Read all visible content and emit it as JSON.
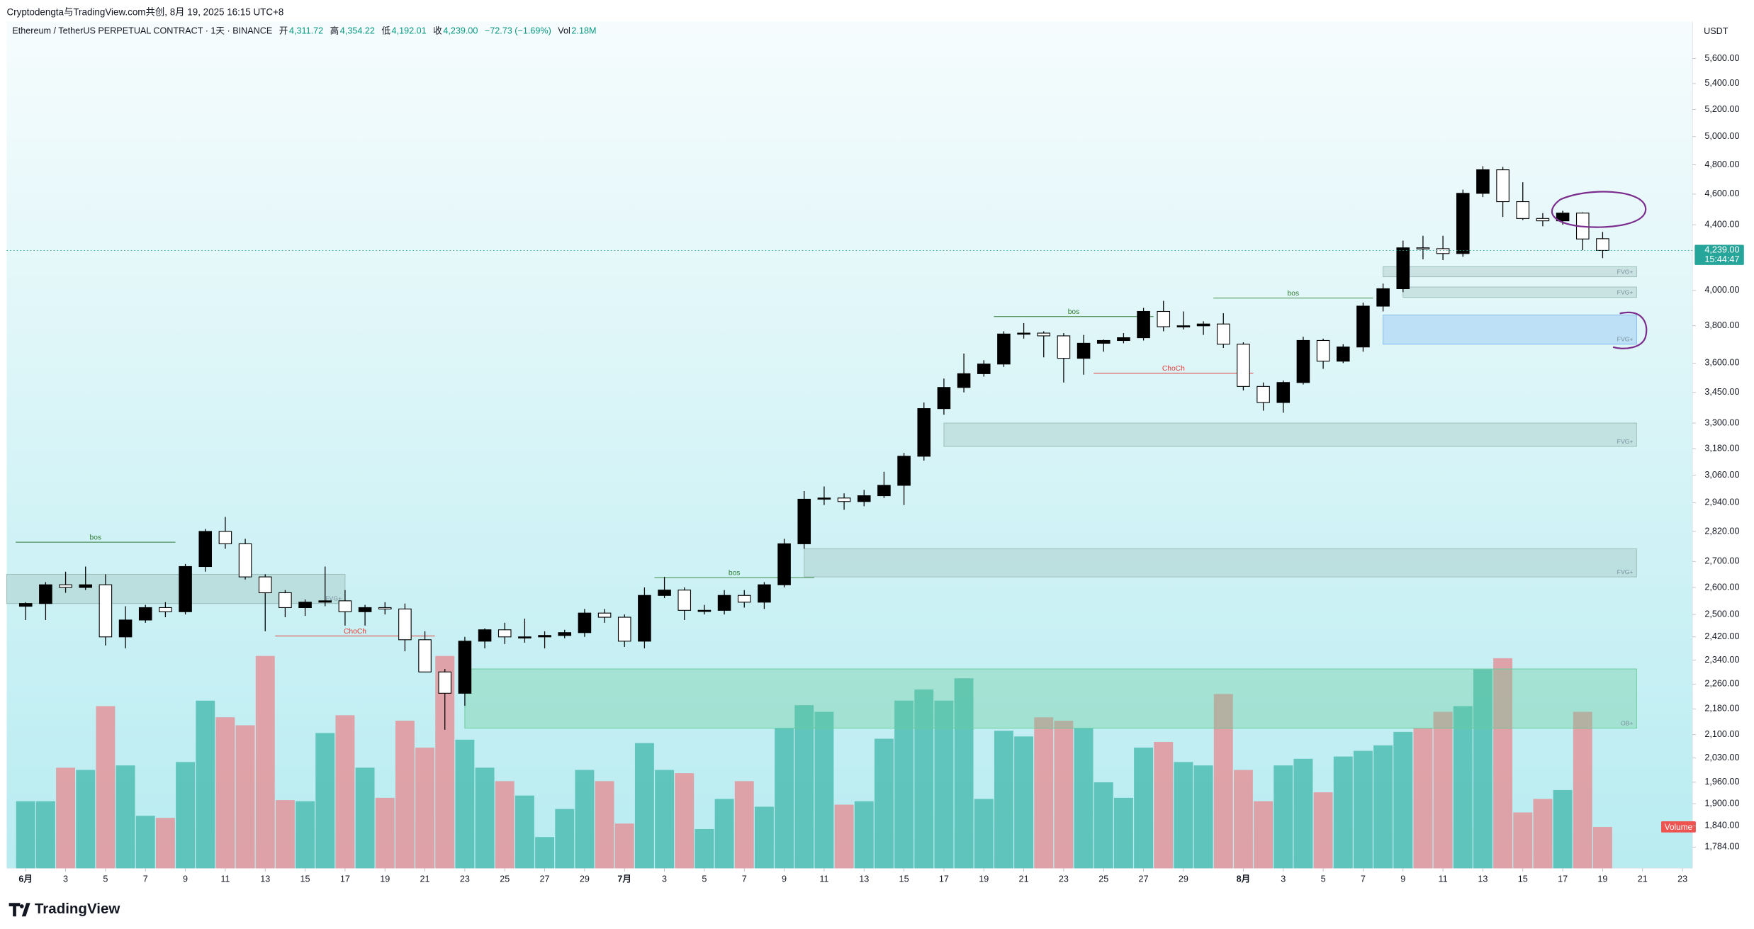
{
  "attribution": "Cryptodengta与TradingView.com共创, 8月 19, 2025 16:15 UTC+8",
  "chart_data": {
    "type": "candlestick",
    "title": "Ethereum / TetherUS PERPETUAL CONTRACT · 1天 · BINANCE",
    "ohlc_header": [
      {
        "label": "开",
        "value": "4,311.72"
      },
      {
        "label": "高",
        "value": "4,354.22"
      },
      {
        "label": "低",
        "value": "4,192.01"
      },
      {
        "label": "收",
        "value": "4,239.00"
      }
    ],
    "change": "−72.73 (−1.69%)",
    "volume_header": {
      "label": "Vol",
      "value": "2.18M"
    },
    "currency": "USDT",
    "last_price": {
      "value": 4239,
      "label": "4,239.00",
      "countdown": "15:44:47"
    },
    "log_scale": true,
    "ylim": [
      1730,
      5908
    ],
    "yticks": [
      {
        "value": 5600,
        "label": "5,600.00"
      },
      {
        "value": 5400,
        "label": "5,400.00"
      },
      {
        "value": 5200,
        "label": "5,200.00"
      },
      {
        "value": 5000,
        "label": "5,000.00"
      },
      {
        "value": 4800,
        "label": "4,800.00"
      },
      {
        "value": 4600,
        "label": "4,600.00"
      },
      {
        "value": 4400,
        "label": "4,400.00"
      },
      {
        "value": 4000,
        "label": "4,000.00"
      },
      {
        "value": 3800,
        "label": "3,800.00"
      },
      {
        "value": 3600,
        "label": "3,600.00"
      },
      {
        "value": 3450,
        "label": "3,450.00"
      },
      {
        "value": 3300,
        "label": "3,300.00"
      },
      {
        "value": 3180,
        "label": "3,180.00"
      },
      {
        "value": 3060,
        "label": "3,060.00"
      },
      {
        "value": 2940,
        "label": "2,940.00"
      },
      {
        "value": 2820,
        "label": "2,820.00"
      },
      {
        "value": 2700,
        "label": "2,700.00"
      },
      {
        "value": 2600,
        "label": "2,600.00"
      },
      {
        "value": 2500,
        "label": "2,500.00"
      },
      {
        "value": 2420,
        "label": "2,420.00"
      },
      {
        "value": 2340,
        "label": "2,340.00"
      },
      {
        "value": 2260,
        "label": "2,260.00"
      },
      {
        "value": 2180,
        "label": "2,180.00"
      },
      {
        "value": 2100,
        "label": "2,100.00"
      },
      {
        "value": 2030,
        "label": "2,030.00"
      },
      {
        "value": 1960,
        "label": "1,960.00"
      },
      {
        "value": 1900,
        "label": "1,900.00"
      },
      {
        "value": 1840,
        "label": "1,840.00"
      },
      {
        "value": 1784,
        "label": "1,784.00"
      }
    ],
    "xlim": [
      -0.95,
      83.5
    ],
    "xticks": [
      {
        "value": 0,
        "label": "6月"
      },
      {
        "value": 2,
        "label": "3"
      },
      {
        "value": 4,
        "label": "5"
      },
      {
        "value": 6,
        "label": "7"
      },
      {
        "value": 8,
        "label": "9"
      },
      {
        "value": 10,
        "label": "11"
      },
      {
        "value": 12,
        "label": "13"
      },
      {
        "value": 14,
        "label": "15"
      },
      {
        "value": 16,
        "label": "17"
      },
      {
        "value": 18,
        "label": "19"
      },
      {
        "value": 20,
        "label": "21"
      },
      {
        "value": 22,
        "label": "23"
      },
      {
        "value": 24,
        "label": "25"
      },
      {
        "value": 26,
        "label": "27"
      },
      {
        "value": 28,
        "label": "29"
      },
      {
        "value": 30,
        "label": "7月"
      },
      {
        "value": 32,
        "label": "3"
      },
      {
        "value": 34,
        "label": "5"
      },
      {
        "value": 36,
        "label": "7"
      },
      {
        "value": 38,
        "label": "9"
      },
      {
        "value": 40,
        "label": "11"
      },
      {
        "value": 42,
        "label": "13"
      },
      {
        "value": 44,
        "label": "15"
      },
      {
        "value": 46,
        "label": "17"
      },
      {
        "value": 48,
        "label": "19"
      },
      {
        "value": 50,
        "label": "21"
      },
      {
        "value": 52,
        "label": "23"
      },
      {
        "value": 54,
        "label": "25"
      },
      {
        "value": 56,
        "label": "27"
      },
      {
        "value": 58,
        "label": "29"
      },
      {
        "value": 61,
        "label": "8月"
      },
      {
        "value": 63,
        "label": "3"
      },
      {
        "value": 65,
        "label": "5"
      },
      {
        "value": 67,
        "label": "7"
      },
      {
        "value": 69,
        "label": "9"
      },
      {
        "value": 71,
        "label": "11"
      },
      {
        "value": 73,
        "label": "13"
      },
      {
        "value": 75,
        "label": "15"
      },
      {
        "value": 77,
        "label": "17"
      },
      {
        "value": 79,
        "label": "19"
      },
      {
        "value": 81,
        "label": "21"
      },
      {
        "value": 83,
        "label": "23"
      }
    ],
    "candles": {
      "open": [
        2530,
        2540,
        2610,
        2600,
        2610,
        2420,
        2480,
        2525,
        2510,
        2680,
        2820,
        2770,
        2640,
        2580,
        2525,
        2545,
        2550,
        2510,
        2525,
        2520,
        2410,
        2300,
        2230,
        2405,
        2445,
        2420,
        2420,
        2425,
        2435,
        2505,
        2490,
        2405,
        2570,
        2590,
        2515,
        2515,
        2570,
        2545,
        2610,
        2770,
        2955,
        2960,
        2945,
        2970,
        3015,
        3145,
        3370,
        3475,
        3545,
        3595,
        3755,
        3760,
        3745,
        3625,
        3705,
        3720,
        3735,
        3880,
        3795,
        3800,
        3810,
        3700,
        3480,
        3400,
        3500,
        3720,
        3610,
        3685,
        3910,
        4010,
        4255,
        4250,
        4220,
        4605,
        4765,
        4550,
        4440,
        4425,
        4475,
        4311.72
      ],
      "high": [
        2545,
        2620,
        2660,
        2680,
        2650,
        2530,
        2535,
        2545,
        2690,
        2830,
        2880,
        2790,
        2650,
        2590,
        2555,
        2680,
        2590,
        2535,
        2545,
        2540,
        2440,
        2310,
        2420,
        2450,
        2470,
        2485,
        2440,
        2445,
        2520,
        2520,
        2500,
        2600,
        2640,
        2600,
        2535,
        2590,
        2590,
        2620,
        2790,
        2990,
        3010,
        2980,
        2995,
        3075,
        3160,
        3400,
        3520,
        3650,
        3615,
        3770,
        3815,
        3770,
        3760,
        3750,
        3725,
        3760,
        3900,
        3940,
        3880,
        3825,
        3870,
        3710,
        3500,
        3510,
        3740,
        3730,
        3700,
        3930,
        4040,
        4300,
        4330,
        4330,
        4630,
        4790,
        4785,
        4680,
        4475,
        4490,
        4480,
        4354.22
      ],
      "low": [
        2480,
        2480,
        2580,
        2590,
        2390,
        2380,
        2470,
        2490,
        2500,
        2660,
        2750,
        2630,
        2440,
        2490,
        2495,
        2530,
        2460,
        2460,
        2500,
        2370,
        2300,
        2115,
        2190,
        2380,
        2395,
        2400,
        2380,
        2415,
        2420,
        2470,
        2385,
        2380,
        2560,
        2480,
        2500,
        2500,
        2525,
        2520,
        2600,
        2750,
        2930,
        2910,
        2925,
        2960,
        2930,
        3125,
        3340,
        3450,
        3530,
        3580,
        3730,
        3630,
        3500,
        3540,
        3660,
        3705,
        3720,
        3770,
        3780,
        3750,
        3680,
        3460,
        3360,
        3350,
        3490,
        3570,
        3600,
        3660,
        3880,
        3990,
        4185,
        4180,
        4200,
        4580,
        4450,
        4430,
        4390,
        4400,
        4240,
        4192.01
      ],
      "close": [
        2540,
        2610,
        2600,
        2610,
        2420,
        2480,
        2525,
        2510,
        2680,
        2820,
        2770,
        2640,
        2580,
        2525,
        2545,
        2550,
        2510,
        2525,
        2520,
        2410,
        2300,
        2230,
        2405,
        2445,
        2420,
        2420,
        2425,
        2435,
        2505,
        2490,
        2405,
        2570,
        2590,
        2515,
        2515,
        2570,
        2545,
        2610,
        2770,
        2955,
        2960,
        2945,
        2970,
        3015,
        3145,
        3370,
        3475,
        3545,
        3595,
        3755,
        3760,
        3745,
        3625,
        3705,
        3720,
        3735,
        3880,
        3795,
        3800,
        3810,
        3700,
        3480,
        3400,
        3500,
        3720,
        3610,
        3685,
        3910,
        4010,
        4255,
        4250,
        4220,
        4605,
        4765,
        4550,
        4440,
        4425,
        4475,
        4310,
        4239.0
      ]
    },
    "volume": {
      "name": "Volume",
      "vlim": [
        0,
        44.7
      ],
      "values": [
        3.54,
        3.54,
        5.31,
        5.19,
        8.56,
        5.43,
        2.77,
        2.66,
        5.61,
        8.85,
        7.97,
        7.55,
        11.21,
        3.6,
        3.54,
        7.14,
        8.08,
        5.31,
        3.72,
        7.79,
        6.37,
        11.21,
        6.79,
        5.31,
        4.6,
        3.84,
        1.65,
        3.13,
        5.19,
        4.6,
        2.36,
        6.61,
        5.19,
        5.02,
        2.07,
        3.66,
        4.6,
        3.25,
        7.38,
        8.61,
        8.26,
        3.36,
        3.54,
        6.84,
        8.85,
        9.44,
        8.85,
        10.03,
        3.66,
        7.26,
        6.96,
        7.97,
        7.79,
        7.38,
        4.54,
        3.72,
        6.37,
        6.67,
        5.61,
        5.43,
        9.2,
        5.19,
        3.54,
        5.43,
        5.78,
        4.01,
        5.9,
        6.2,
        6.49,
        7.2,
        7.38,
        8.26,
        8.56,
        10.5,
        11.09,
        2.95,
        3.66,
        4.13,
        8.26,
        2.18
      ]
    },
    "colors": {
      "up": "#000000",
      "down": "#ffffff",
      "wick": "#000000",
      "volume_up": "#4fbdb3",
      "volume_down": "#e3949a",
      "price_label": "#26a69a",
      "header_value": "#089981",
      "volume_label": "#ef5350"
    },
    "zones": [
      {
        "label": "OB+",
        "x0": 22,
        "x1": 80.7,
        "lo": 2120,
        "hi": 2310,
        "color": "#66cc99"
      },
      {
        "label": "FVG+",
        "x0": 39,
        "x1": 80.7,
        "lo": 2640,
        "hi": 2750,
        "color": "#9bbdb8"
      },
      {
        "label": "FVG+",
        "x0": 46,
        "x1": 80.7,
        "lo": 3190,
        "hi": 3300,
        "color": "#9bbdb8"
      },
      {
        "label": "FVG+",
        "x0": 68,
        "x1": 80.7,
        "lo": 3700,
        "hi": 3860,
        "color": "#7fb8f0"
      },
      {
        "label": "FVG+",
        "x0": 69,
        "x1": 80.7,
        "lo": 3960,
        "hi": 4020,
        "color": "#9bbdb8"
      },
      {
        "label": "FVG+",
        "x0": 68,
        "x1": 80.7,
        "lo": 4080,
        "hi": 4140,
        "color": "#9bbdb8"
      },
      {
        "label": "FVG+",
        "x0": -0.95,
        "x1": 16,
        "lo": 2540,
        "hi": 2650,
        "color": "#9bbdb8"
      }
    ],
    "annotations": [
      {
        "text": "bos",
        "x": 3.5,
        "price": 2790,
        "color": "#2e7d32"
      },
      {
        "text": "ChoCh",
        "x": 16.5,
        "price": 2435,
        "color": "#e53935"
      },
      {
        "text": "bos",
        "x": 35.5,
        "price": 2650,
        "color": "#2e7d32"
      },
      {
        "text": "bos",
        "x": 52.5,
        "price": 3870,
        "color": "#2e7d32"
      },
      {
        "text": "ChoCh",
        "x": 57.5,
        "price": 3565,
        "color": "#e53935"
      },
      {
        "text": "bos",
        "x": 63.5,
        "price": 3975,
        "color": "#2e7d32"
      }
    ]
  },
  "footer": {
    "brand": "TradingView"
  }
}
